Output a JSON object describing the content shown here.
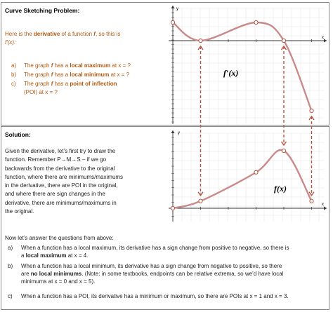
{
  "problem": {
    "heading": "Curve Sketching Problem:",
    "intro_pre": "Here is the ",
    "intro_bold": "derivative",
    "intro_mid": " of a function ",
    "intro_f": "f",
    "intro_post": ", so this is",
    "intro_line2": "f′(x):",
    "questions": [
      {
        "label": "a)",
        "pre": "The graph ",
        "f": "f",
        "mid": " has a ",
        "bold": "local maximum",
        "post": " at x = ?"
      },
      {
        "label": "b)",
        "pre": "The graph ",
        "f": "f",
        "mid": " has a ",
        "bold": "local minimum",
        "post": " at x = ?"
      },
      {
        "label": "c)",
        "pre": "The graph ",
        "f": "f",
        "mid": " has a ",
        "bold": "point of inflection",
        "post": ""
      }
    ],
    "q_c_line2": "(POI) at x = ?",
    "graph_label": "f′(x)",
    "y_axis": "y",
    "x_axis": "x"
  },
  "solution": {
    "heading": "Solution:",
    "lines": [
      "Given the derivative, let’s first try to draw the",
      "function.  Remember P→M→S – if we go",
      "backwards from the derivative to the original",
      "function, where there are minimums/maximums",
      "in the derivative, there are POI in the original,",
      "and where there are sign changes in the",
      "derivative, there are minimums/maximums in",
      "the original."
    ],
    "now_line": "Now let’s answer the questions from above:",
    "answers": [
      {
        "label": "a)",
        "lines": [
          "When a function has a local maximum, its derivative has a sign change from positive to negative, so there is",
          "a |local maximum| at x = 4."
        ]
      },
      {
        "label": "b)",
        "lines": [
          "When a function has a local minimum, its derivative has a sign change from negative to positive, so there",
          "are |no local minimums|.  (Note: in some textbooks, endpoints can be relative extrema, so we’d have local",
          "minimums at x = 0 and x = 5)."
        ]
      },
      {
        "label": "c)",
        "lines": [
          "When a function has a POI, its derivative has a minimum or maximum, so there are POIs at x = 1 and x = 3."
        ]
      }
    ],
    "graph_label": "f(x)",
    "y_axis": "y",
    "x_axis": "x"
  },
  "colors": {
    "curve": "#c98a8a",
    "accent_text": "#b3560c",
    "arrow": "#b5533f",
    "axis": "#333333"
  },
  "chart_data": [
    {
      "type": "line",
      "series": [
        {
          "name": "f′(x)",
          "x": [
            0,
            1,
            3,
            4,
            5
          ],
          "y": [
            1,
            0,
            1,
            0,
            -4
          ]
        }
      ],
      "xlabel": "x",
      "ylabel": "y"
    },
    {
      "type": "line",
      "series": [
        {
          "name": "f(x)",
          "x": [
            0,
            1,
            3,
            4,
            5
          ],
          "y": [
            0,
            0.5,
            2.5,
            4,
            0.5
          ]
        }
      ],
      "xlabel": "x",
      "ylabel": "y"
    }
  ]
}
